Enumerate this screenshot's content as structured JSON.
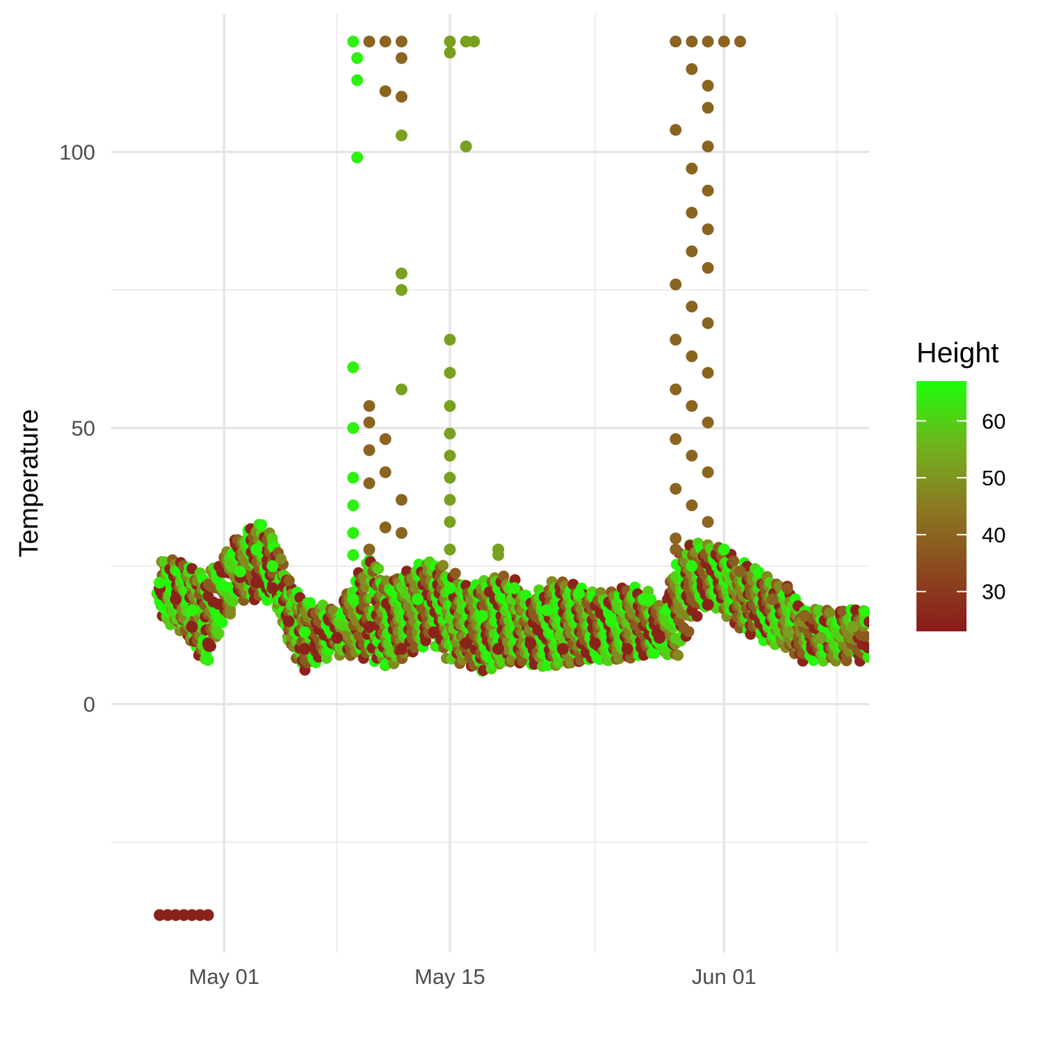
{
  "chart_data": {
    "type": "scatter",
    "title": "",
    "xlabel": "",
    "ylabel": "Temperature",
    "x_axis": {
      "type": "date",
      "range": [
        "2025-04-24",
        "2025-06-10"
      ],
      "major_ticks": [
        "2025-05-01",
        "2025-05-15",
        "2025-06-01"
      ],
      "tick_labels": [
        "May 01",
        "May 15",
        "Jun 01"
      ],
      "minor_ticks": [
        "2025-05-08",
        "2025-05-24",
        "2025-06-08"
      ]
    },
    "y_axis": {
      "range": [
        -45,
        125
      ],
      "major_ticks": [
        0,
        50,
        100
      ],
      "tick_labels": [
        "0",
        "50",
        "100"
      ],
      "minor_ticks": [
        -25,
        25,
        75
      ]
    },
    "grid": true,
    "legend": {
      "title": "Height",
      "type": "gradient",
      "position": "right",
      "range": [
        23,
        67
      ],
      "ticks": [
        30,
        40,
        50,
        60
      ],
      "tick_labels": [
        "30",
        "40",
        "50",
        "60"
      ],
      "colors": [
        "#8b1a1a",
        "#8b4a1e",
        "#8b7a22",
        "#6fb51c",
        "#1eff0b"
      ]
    },
    "series": [
      {
        "height": 25,
        "points": [
          [
            "2025-04-27",
            -38.2
          ],
          [
            "2025-04-27 12:00",
            -38.2
          ],
          [
            "2025-04-28",
            -38.2
          ],
          [
            "2025-04-28 12:00",
            -38.2
          ],
          [
            "2025-04-29",
            -38.2
          ],
          [
            "2025-04-29 12:00",
            -38.2
          ],
          [
            "2025-04-30",
            -38.2
          ],
          [
            "2025-04-27",
            21
          ],
          [
            "2025-04-28",
            19
          ],
          [
            "2025-04-29",
            14
          ],
          [
            "2025-04-30",
            11
          ],
          [
            "2025-05-02",
            23
          ],
          [
            "2025-05-03",
            22
          ],
          [
            "2025-05-04",
            21
          ],
          [
            "2025-05-05",
            15
          ],
          [
            "2025-05-06",
            10
          ],
          [
            "2025-05-08",
            12
          ],
          [
            "2025-05-10",
            14
          ],
          [
            "2025-05-12",
            10
          ],
          [
            "2025-05-14",
            13
          ],
          [
            "2025-05-16",
            11
          ],
          [
            "2025-05-18",
            10
          ],
          [
            "2025-05-20",
            11
          ],
          [
            "2025-05-22",
            10
          ],
          [
            "2025-05-24",
            11
          ],
          [
            "2025-05-26",
            10
          ],
          [
            "2025-05-28",
            12
          ],
          [
            "2025-05-31",
            18
          ]
        ]
      },
      {
        "height": 40,
        "points": [
          [
            "2025-05-10",
            120
          ],
          [
            "2025-05-11",
            120
          ],
          [
            "2025-05-12",
            120
          ],
          [
            "2025-05-12",
            117
          ],
          [
            "2025-05-11",
            111
          ],
          [
            "2025-05-12",
            110
          ],
          [
            "2025-05-10",
            54
          ],
          [
            "2025-05-10",
            51
          ],
          [
            "2025-05-11",
            48
          ],
          [
            "2025-05-10",
            46
          ],
          [
            "2025-05-11",
            42
          ],
          [
            "2025-05-10",
            40
          ],
          [
            "2025-05-12",
            37
          ],
          [
            "2025-05-11",
            32
          ],
          [
            "2025-05-12",
            31
          ],
          [
            "2025-05-10",
            28
          ],
          [
            "2025-05-29",
            120
          ],
          [
            "2025-05-30",
            120
          ],
          [
            "2025-05-31",
            120
          ],
          [
            "2025-06-01",
            120
          ],
          [
            "2025-06-02",
            120
          ],
          [
            "2025-05-30",
            115
          ],
          [
            "2025-05-31",
            112
          ],
          [
            "2025-05-31",
            108
          ],
          [
            "2025-05-29",
            104
          ],
          [
            "2025-05-31",
            101
          ],
          [
            "2025-05-30",
            97
          ],
          [
            "2025-05-31",
            93
          ],
          [
            "2025-05-30",
            89
          ],
          [
            "2025-05-31",
            86
          ],
          [
            "2025-05-30",
            82
          ],
          [
            "2025-05-31",
            79
          ],
          [
            "2025-05-29",
            76
          ],
          [
            "2025-05-30",
            72
          ],
          [
            "2025-05-31",
            69
          ],
          [
            "2025-05-29",
            66
          ],
          [
            "2025-05-30",
            63
          ],
          [
            "2025-05-31",
            60
          ],
          [
            "2025-05-29",
            57
          ],
          [
            "2025-05-30",
            54
          ],
          [
            "2025-05-31",
            51
          ],
          [
            "2025-05-29",
            48
          ],
          [
            "2025-05-30",
            45
          ],
          [
            "2025-05-31",
            42
          ],
          [
            "2025-05-29",
            39
          ],
          [
            "2025-05-30",
            36
          ],
          [
            "2025-05-31",
            33
          ],
          [
            "2025-05-29",
            30
          ],
          [
            "2025-05-29",
            28
          ],
          [
            "2025-06-02",
            24
          ],
          [
            "2025-06-04",
            19
          ],
          [
            "2025-06-06",
            16
          ]
        ]
      },
      {
        "height": 52,
        "points": [
          [
            "2025-05-15",
            120
          ],
          [
            "2025-05-16",
            120
          ],
          [
            "2025-05-16 12:00",
            120
          ],
          [
            "2025-05-15",
            118
          ],
          [
            "2025-05-16",
            101
          ],
          [
            "2025-05-12",
            103
          ],
          [
            "2025-05-12",
            78
          ],
          [
            "2025-05-12",
            75
          ],
          [
            "2025-05-12",
            57
          ],
          [
            "2025-05-15",
            66
          ],
          [
            "2025-05-15",
            60
          ],
          [
            "2025-05-15",
            54
          ],
          [
            "2025-05-15",
            49
          ],
          [
            "2025-05-15",
            45
          ],
          [
            "2025-05-15",
            41
          ],
          [
            "2025-05-15",
            37
          ],
          [
            "2025-05-15",
            33
          ],
          [
            "2025-05-15",
            28
          ],
          [
            "2025-05-18",
            28
          ],
          [
            "2025-05-18",
            27
          ],
          [
            "2025-06-05",
            13
          ],
          [
            "2025-06-07",
            12
          ],
          [
            "2025-06-09",
            14
          ]
        ]
      },
      {
        "height": 65,
        "points": [
          [
            "2025-05-09",
            120
          ],
          [
            "2025-05-09 06:00",
            117
          ],
          [
            "2025-05-09 06:00",
            113
          ],
          [
            "2025-05-09 06:00",
            99
          ],
          [
            "2025-05-09",
            61
          ],
          [
            "2025-05-09",
            50
          ],
          [
            "2025-05-09",
            41
          ],
          [
            "2025-05-09",
            36
          ],
          [
            "2025-05-09",
            31
          ],
          [
            "2025-05-09",
            27
          ],
          [
            "2025-04-27",
            22
          ],
          [
            "2025-04-29",
            17
          ],
          [
            "2025-04-30",
            8
          ],
          [
            "2025-05-02",
            24
          ],
          [
            "2025-05-03",
            28
          ],
          [
            "2025-05-04",
            25
          ],
          [
            "2025-05-06",
            13
          ],
          [
            "2025-05-09",
            19
          ],
          [
            "2025-05-13",
            19
          ],
          [
            "2025-05-15",
            21
          ],
          [
            "2025-05-17",
            16
          ],
          [
            "2025-05-19",
            21
          ],
          [
            "2025-05-21",
            17
          ],
          [
            "2025-05-23",
            20
          ],
          [
            "2025-05-25",
            15
          ],
          [
            "2025-05-27",
            19
          ],
          [
            "2025-05-30",
            25
          ],
          [
            "2025-06-01",
            28
          ]
        ]
      }
    ],
    "bands": [
      {
        "x": [
          "2025-04-27",
          "2025-04-28",
          "2025-04-29",
          "2025-04-30",
          "2025-05-01",
          "2025-05-02",
          "2025-05-03",
          "2025-05-04",
          "2025-05-05",
          "2025-05-06",
          "2025-05-07",
          "2025-05-08",
          "2025-05-09",
          "2025-05-10",
          "2025-05-11",
          "2025-05-12",
          "2025-05-13",
          "2025-05-14",
          "2025-05-15",
          "2025-05-16",
          "2025-05-17",
          "2025-05-18",
          "2025-05-19",
          "2025-05-20",
          "2025-05-21",
          "2025-05-22",
          "2025-05-23",
          "2025-05-24",
          "2025-05-25",
          "2025-05-26",
          "2025-05-27",
          "2025-05-28",
          "2025-05-29",
          "2025-05-30",
          "2025-05-31",
          "2025-06-01",
          "2025-06-02",
          "2025-06-03",
          "2025-06-04",
          "2025-06-05",
          "2025-06-06",
          "2025-06-07",
          "2025-06-08",
          "2025-06-09",
          "2025-06-10"
        ],
        "low": [
          16,
          15,
          12,
          8,
          15,
          20,
          20,
          20,
          12,
          7,
          9,
          10,
          10,
          9,
          8,
          9,
          11,
          12,
          9,
          8,
          7,
          8,
          9,
          8,
          8,
          8,
          9,
          9,
          9,
          9,
          10,
          10,
          10,
          16,
          19,
          18,
          15,
          13,
          12,
          11,
          9,
          9,
          9,
          9,
          9
        ],
        "high": [
          25,
          25,
          24,
          22,
          26,
          30,
          32,
          29,
          22,
          18,
          17,
          16,
          22,
          26,
          21,
          22,
          24,
          25,
          23,
          20,
          21,
          22,
          22,
          18,
          21,
          21,
          20,
          19,
          19,
          20,
          20,
          16,
          26,
          28,
          28,
          27,
          25,
          23,
          21,
          20,
          16,
          16,
          16,
          16,
          16
        ]
      }
    ]
  }
}
